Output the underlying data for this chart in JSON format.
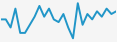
{
  "x": [
    0,
    1,
    2,
    3,
    4,
    5,
    6,
    7,
    8,
    9,
    10,
    11,
    12,
    13,
    14,
    15,
    16,
    17,
    18,
    19,
    20,
    21,
    22,
    23,
    24
  ],
  "y": [
    55,
    55,
    40,
    75,
    30,
    30,
    45,
    60,
    80,
    60,
    75,
    55,
    50,
    65,
    40,
    20,
    85,
    45,
    65,
    55,
    70,
    60,
    75,
    65,
    70
  ],
  "line_color": "#2196c8",
  "line_width": 1.4,
  "background_color": "#f5f5f5"
}
